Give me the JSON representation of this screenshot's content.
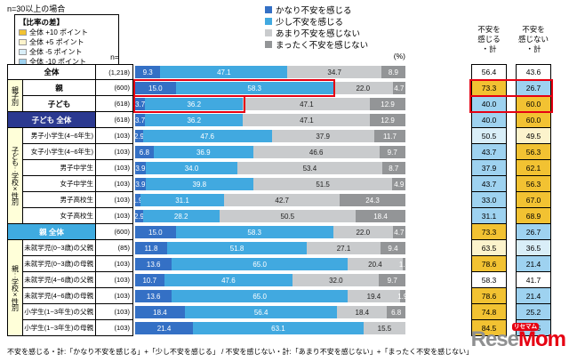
{
  "meta": {
    "note_top": "n=30以上の場合",
    "n_header": "n=",
    "percent_label": "(%)",
    "footnote": "不安を感じる・計:「かなり不安を感じる」+「少し不安を感じる」 / 不安を感じない・計:「あまり不安を感じない」+「まったく不安を感じない」",
    "accent_red": "#e60012",
    "logo": {
      "gray": "Rese",
      "red": "Mom",
      "tag": "リセマム"
    }
  },
  "diff_legend": {
    "title": "【比率の差】",
    "items": [
      {
        "label": "全体 +10 ポイント",
        "color": "#f2c232"
      },
      {
        "label": "全体 +5 ポイント",
        "color": "#fcf3cc"
      },
      {
        "label": "全体 -5 ポイント",
        "color": "#d9eef8"
      },
      {
        "label": "全体 -10 ポイント",
        "color": "#9ed2f0"
      }
    ]
  },
  "legend": {
    "items": [
      {
        "label": "かなり不安を感じる",
        "color": "#3470c5"
      },
      {
        "label": "少し不安を感じる",
        "color": "#41a9e0"
      },
      {
        "label": "あまり不安を感じない",
        "color": "#c9cbcd"
      },
      {
        "label": "まったく不安を感じない",
        "color": "#939597"
      }
    ]
  },
  "totals_headers": [
    {
      "label": "不安を\n感じる\n・計"
    },
    {
      "label": "不安を\n感じない\n・計"
    }
  ],
  "highlight_colors": {
    "plus10": "#f2c232",
    "plus5": "#fcf3cc",
    "minus5": "#d9eef8",
    "minus10": "#9ed2f0",
    "none": "#ffffff"
  },
  "band_colors": {
    "navy": "#2b3990",
    "cyan": "#3fabe0"
  },
  "chart_data": {
    "type": "bar",
    "stacked": true,
    "orientation": "horizontal",
    "unit": "%",
    "value_axis": {
      "min": 0,
      "max": 100
    },
    "series_labels": [
      "かなり不安を感じる",
      "少し不安を感じる",
      "あまり不安を感じない",
      "まったく不安を感じない"
    ],
    "totals_labels": [
      "不安を感じる・計",
      "不安を感じない・計"
    ],
    "rows": [
      {
        "wide": true,
        "center": true,
        "label": "全体",
        "n": "(1,218)",
        "values": [
          9.3,
          47.1,
          34.7,
          8.9
        ],
        "totals": [
          56.4,
          43.6
        ],
        "hl": [
          "none",
          "none"
        ]
      },
      {
        "group": {
          "label": "親子別",
          "span": 2
        },
        "center": true,
        "label": "親",
        "n": "(600)",
        "values": [
          15.0,
          58.3,
          22.0,
          4.7
        ],
        "totals": [
          73.3,
          26.7
        ],
        "hl": [
          "plus10",
          "minus10"
        ],
        "red_pct": 73.3,
        "red_totals": true
      },
      {
        "center": true,
        "label": "子ども",
        "n": "(618)",
        "values": [
          3.7,
          36.2,
          47.1,
          12.9
        ],
        "totals": [
          40.0,
          60.0
        ],
        "hl": [
          "minus10",
          "plus10"
        ],
        "red_pct": 40.0,
        "red_totals": true
      },
      {
        "wide": true,
        "center": true,
        "band": "navy",
        "label": "子ども 全体",
        "n": "(618)",
        "values": [
          3.7,
          36.2,
          47.1,
          12.9
        ],
        "totals": [
          40.0,
          60.0
        ],
        "hl": [
          "minus10",
          "plus10"
        ]
      },
      {
        "group": {
          "label": "子ども:学校×性別",
          "span": 6
        },
        "label": "男子小学生(4~6年生)",
        "n": "(103)",
        "values": [
          2.9,
          47.6,
          37.9,
          11.7
        ],
        "totals": [
          50.5,
          49.5
        ],
        "hl": [
          "minus5",
          "plus5"
        ]
      },
      {
        "label": "女子小学生(4~6年生)",
        "n": "(103)",
        "values": [
          6.8,
          36.9,
          46.6,
          9.7
        ],
        "totals": [
          43.7,
          56.3
        ],
        "hl": [
          "minus10",
          "plus10"
        ]
      },
      {
        "label": "男子中学生",
        "n": "(103)",
        "values": [
          3.9,
          34.0,
          53.4,
          8.7
        ],
        "totals": [
          37.9,
          62.1
        ],
        "hl": [
          "minus10",
          "plus10"
        ]
      },
      {
        "label": "女子中学生",
        "n": "(103)",
        "values": [
          3.9,
          39.8,
          51.5,
          4.9
        ],
        "totals": [
          43.7,
          56.3
        ],
        "hl": [
          "minus10",
          "plus10"
        ]
      },
      {
        "label": "男子高校生",
        "n": "(103)",
        "values": [
          1.9,
          31.1,
          42.7,
          24.3
        ],
        "totals": [
          33.0,
          67.0
        ],
        "hl": [
          "minus10",
          "plus10"
        ]
      },
      {
        "label": "女子高校生",
        "n": "(103)",
        "values": [
          2.9,
          28.2,
          50.5,
          18.4
        ],
        "totals": [
          31.1,
          68.9
        ],
        "hl": [
          "minus10",
          "plus10"
        ]
      },
      {
        "wide": true,
        "center": true,
        "band": "cyan",
        "label": "親 全体",
        "n": "(600)",
        "values": [
          15.0,
          58.3,
          22.0,
          4.7
        ],
        "totals": [
          73.3,
          26.7
        ],
        "hl": [
          "plus10",
          "minus10"
        ]
      },
      {
        "group": {
          "label": "親:学校×性別",
          "span": 6
        },
        "label": "未就学児(0~3歳)の父親",
        "n": "(85)",
        "values": [
          11.8,
          51.8,
          27.1,
          9.4
        ],
        "totals": [
          63.5,
          36.5
        ],
        "hl": [
          "plus5",
          "minus5"
        ]
      },
      {
        "label": "未就学児(0~3歳)の母親",
        "n": "(103)",
        "values": [
          13.6,
          65.0,
          20.4,
          1.0
        ],
        "totals": [
          78.6,
          21.4
        ],
        "hl": [
          "plus10",
          "minus10"
        ]
      },
      {
        "label": "未就学児(4~6歳)の父親",
        "n": "(103)",
        "values": [
          10.7,
          47.6,
          32.0,
          9.7
        ],
        "totals": [
          58.3,
          41.7
        ],
        "hl": [
          "none",
          "none"
        ]
      },
      {
        "label": "未就学児(4~6歳)の母親",
        "n": "(103)",
        "values": [
          13.6,
          65.0,
          19.4,
          1.9
        ],
        "totals": [
          78.6,
          21.4
        ],
        "hl": [
          "plus10",
          "minus10"
        ]
      },
      {
        "label": "小学生(1~3年生)の父親",
        "n": "(103)",
        "values": [
          18.4,
          56.4,
          18.4,
          6.8
        ],
        "totals": [
          74.8,
          25.2
        ],
        "hl": [
          "plus10",
          "minus10"
        ]
      },
      {
        "label": "小学生(1~3年生)の母親",
        "n": "(103)",
        "values": [
          21.4,
          63.1,
          15.5,
          0.0
        ],
        "totals": [
          84.5,
          15.5
        ],
        "hl": [
          "plus10",
          "minus10"
        ]
      }
    ]
  }
}
